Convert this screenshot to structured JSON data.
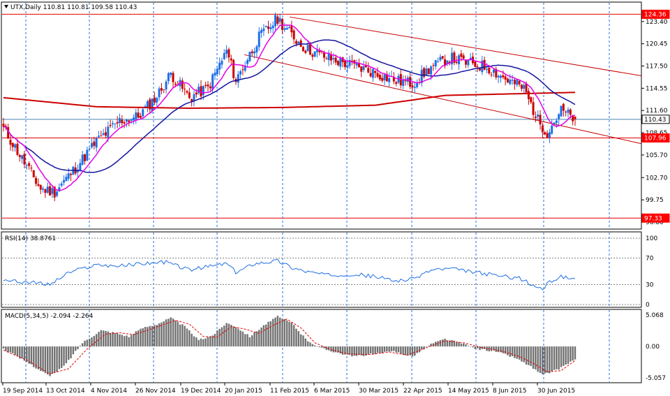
{
  "main_panel": {
    "header": "UTX,Daily  110.81 110.81 109.58 110.43",
    "price_ticks": [
      "123.40",
      "120.45",
      "117.50",
      "114.55",
      "111.60",
      "108.65",
      "105.70",
      "102.70",
      "99.75",
      "96.80"
    ],
    "level_labels": [
      {
        "text": "124.36",
        "value": 124.36,
        "bg": "#ff0000",
        "fg": "#ffffff"
      },
      {
        "text": "110.43",
        "value": 110.43,
        "bg": "#ffffff",
        "fg": "#000000"
      },
      {
        "text": "107.96",
        "value": 107.96,
        "bg": "#ff0000",
        "fg": "#ffffff"
      },
      {
        "text": "97.33",
        "value": 97.33,
        "bg": "#ff0000",
        "fg": "#ffffff"
      }
    ]
  },
  "rsi_panel": {
    "header": "RSI(14) 38.8761",
    "ticks": [
      "100",
      "70",
      "30",
      "0"
    ]
  },
  "macd_panel": {
    "header": "MACD(5,34,5) -2.094 -2.264",
    "ticks": [
      "5.068",
      "0.00",
      "-5.057"
    ]
  },
  "x_axis": {
    "labels": [
      "19 Sep 2014",
      "13 Oct 2014",
      "4 Nov 2014",
      "26 Nov 2014",
      "19 Dec 2014",
      "20 Jan 2015",
      "11 Feb 2015",
      "6 Mar 2015",
      "30 Mar 2015",
      "22 Apr 2015",
      "14 May 2015",
      "8 Jun 2015",
      "30 Jun 2015"
    ]
  },
  "colors": {
    "bull": "#1e6ee6",
    "bear": "#cc0000",
    "ma_fast": "#e600e6",
    "ma_mid": "#1414a0",
    "ma_slow": "#cc0000",
    "level_line": "#e00000",
    "channel": "#c80000",
    "rsi_line": "#1e6ee6",
    "macd_hist": "#707070",
    "macd_signal": "#e00000",
    "grid": "#1e6ee6"
  },
  "chart_data": {
    "type": "candlestick",
    "symbol": "UTX",
    "timeframe": "Daily",
    "last_bar": {
      "open": 110.81,
      "high": 110.81,
      "low": 109.58,
      "close": 110.43
    },
    "price_range": [
      96.8,
      124.4
    ],
    "horizontal_levels": [
      124.36,
      110.43,
      107.96,
      97.33
    ],
    "close_anchors": [
      [
        0,
        109.2
      ],
      [
        8,
        105.2
      ],
      [
        16,
        101.2
      ],
      [
        22,
        100.8
      ],
      [
        30,
        103.6
      ],
      [
        40,
        107.5
      ],
      [
        50,
        110.2
      ],
      [
        58,
        110.8
      ],
      [
        66,
        113.5
      ],
      [
        72,
        116.5
      ],
      [
        80,
        113.3
      ],
      [
        88,
        114.6
      ],
      [
        96,
        119.5
      ],
      [
        100,
        115.6
      ],
      [
        110,
        121.3
      ],
      [
        118,
        123.8
      ],
      [
        124,
        121.6
      ],
      [
        130,
        119.8
      ],
      [
        140,
        118.5
      ],
      [
        150,
        117.6
      ],
      [
        160,
        116.6
      ],
      [
        168,
        115.6
      ],
      [
        176,
        115.2
      ],
      [
        184,
        117.3
      ],
      [
        192,
        118.6
      ],
      [
        200,
        117.9
      ],
      [
        208,
        117.4
      ],
      [
        216,
        115.8
      ],
      [
        224,
        114.5
      ],
      [
        230,
        110.3
      ],
      [
        234,
        108.7
      ],
      [
        240,
        111.6
      ],
      [
        246,
        110.43
      ]
    ],
    "rsi": {
      "period": 14,
      "last": 38.8761,
      "range": [
        0,
        100
      ],
      "levels": [
        70,
        30
      ],
      "anchors": [
        [
          0,
          38
        ],
        [
          6,
          34
        ],
        [
          10,
          34
        ],
        [
          20,
          30
        ],
        [
          28,
          48
        ],
        [
          40,
          60
        ],
        [
          50,
          58
        ],
        [
          60,
          62
        ],
        [
          70,
          64
        ],
        [
          80,
          52
        ],
        [
          96,
          62
        ],
        [
          100,
          48
        ],
        [
          108,
          62
        ],
        [
          118,
          66
        ],
        [
          124,
          56
        ],
        [
          130,
          50
        ],
        [
          140,
          44
        ],
        [
          150,
          46
        ],
        [
          160,
          42
        ],
        [
          168,
          36
        ],
        [
          176,
          38
        ],
        [
          184,
          52
        ],
        [
          192,
          54
        ],
        [
          200,
          50
        ],
        [
          208,
          46
        ],
        [
          216,
          42
        ],
        [
          222,
          40
        ],
        [
          228,
          28
        ],
        [
          232,
          24
        ],
        [
          236,
          36
        ],
        [
          240,
          42
        ],
        [
          246,
          38.9
        ]
      ]
    },
    "macd": {
      "params": [
        5,
        34,
        5
      ],
      "main": -2.094,
      "signal": -2.264,
      "range": [
        -5.057,
        5.068
      ],
      "hist_anchors": [
        [
          0,
          -0.4
        ],
        [
          10,
          -2.5
        ],
        [
          20,
          -4.8
        ],
        [
          26,
          -3.2
        ],
        [
          34,
          0.6
        ],
        [
          42,
          2.6
        ],
        [
          48,
          2.2
        ],
        [
          54,
          1.6
        ],
        [
          60,
          3.0
        ],
        [
          66,
          3.6
        ],
        [
          72,
          4.6
        ],
        [
          78,
          3.2
        ],
        [
          84,
          1.0
        ],
        [
          90,
          1.8
        ],
        [
          96,
          3.8
        ],
        [
          100,
          3.2
        ],
        [
          106,
          1.6
        ],
        [
          112,
          3.4
        ],
        [
          118,
          4.8
        ],
        [
          124,
          3.8
        ],
        [
          130,
          1.2
        ],
        [
          136,
          -0.2
        ],
        [
          142,
          -0.8
        ],
        [
          150,
          -1.6
        ],
        [
          160,
          -1.2
        ],
        [
          168,
          -0.8
        ],
        [
          176,
          -1.6
        ],
        [
          184,
          0.4
        ],
        [
          190,
          1.2
        ],
        [
          196,
          0.6
        ],
        [
          204,
          -0.4
        ],
        [
          212,
          -0.8
        ],
        [
          220,
          -1.8
        ],
        [
          226,
          -3.0
        ],
        [
          232,
          -4.6
        ],
        [
          238,
          -3.8
        ],
        [
          246,
          -2.094
        ]
      ],
      "signal_anchors": [
        [
          0,
          -0.6
        ],
        [
          10,
          -2.2
        ],
        [
          20,
          -4.4
        ],
        [
          28,
          -3.6
        ],
        [
          36,
          -0.4
        ],
        [
          44,
          2.0
        ],
        [
          50,
          2.2
        ],
        [
          56,
          1.9
        ],
        [
          62,
          2.6
        ],
        [
          68,
          3.4
        ],
        [
          74,
          4.2
        ],
        [
          80,
          3.6
        ],
        [
          86,
          1.6
        ],
        [
          92,
          1.5
        ],
        [
          98,
          3.2
        ],
        [
          104,
          2.8
        ],
        [
          110,
          2.1
        ],
        [
          116,
          3.4
        ],
        [
          122,
          4.4
        ],
        [
          128,
          3.0
        ],
        [
          134,
          0.6
        ],
        [
          140,
          -0.4
        ],
        [
          148,
          -1.2
        ],
        [
          158,
          -1.3
        ],
        [
          166,
          -0.9
        ],
        [
          174,
          -1.4
        ],
        [
          182,
          -0.2
        ],
        [
          190,
          0.9
        ],
        [
          198,
          0.6
        ],
        [
          206,
          -0.2
        ],
        [
          214,
          -0.7
        ],
        [
          222,
          -1.6
        ],
        [
          228,
          -2.7
        ],
        [
          234,
          -4.1
        ],
        [
          240,
          -3.9
        ],
        [
          246,
          -2.264
        ]
      ]
    }
  }
}
